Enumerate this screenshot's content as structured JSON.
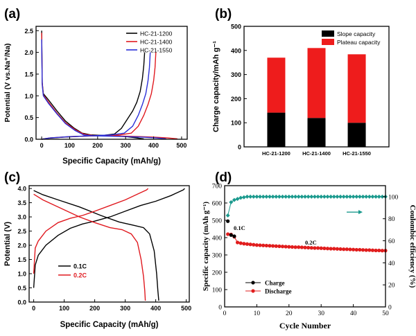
{
  "panels": [
    {
      "id": "a",
      "panel_label": "(a)",
      "chart_data": {
        "type": "line",
        "xlabel": "Specific Capacity (mAh/g)",
        "ylabel": "Potential (V vs.Na⁺/Na)",
        "xlim": [
          -20,
          520
        ],
        "ylim": [
          0,
          2.6
        ],
        "xticks": [
          0,
          100,
          200,
          300,
          400,
          500
        ],
        "yticks": [
          0.0,
          0.5,
          1.0,
          1.5,
          2.0,
          2.5
        ],
        "legend": "top-right",
        "series": [
          {
            "name": "HC-21-1200",
            "color": "#000000",
            "discharge": [
              [
                0,
                2.5
              ],
              [
                2,
                1.3
              ],
              [
                6,
                1.05
              ],
              [
                25,
                0.9
              ],
              [
                55,
                0.65
              ],
              [
                85,
                0.42
              ],
              [
                115,
                0.26
              ],
              [
                145,
                0.14
              ],
              [
                175,
                0.1
              ],
              [
                220,
                0.09
              ],
              [
                260,
                0.08
              ],
              [
                300,
                0.06
              ],
              [
                330,
                0.04
              ],
              [
                350,
                0.02
              ],
              [
                365,
                0.01
              ]
            ],
            "charge": [
              [
                0,
                0.0
              ],
              [
                20,
                0.02
              ],
              [
                80,
                0.05
              ],
              [
                150,
                0.07
              ],
              [
                220,
                0.09
              ],
              [
                260,
                0.12
              ],
              [
                285,
                0.25
              ],
              [
                305,
                0.45
              ],
              [
                325,
                0.65
              ],
              [
                340,
                0.85
              ],
              [
                352,
                1.1
              ],
              [
                360,
                1.4
              ],
              [
                365,
                1.7
              ],
              [
                368,
                2.0
              ]
            ]
          },
          {
            "name": "HC-21-1400",
            "color": "#e0191f",
            "discharge": [
              [
                0,
                2.45
              ],
              [
                2,
                1.3
              ],
              [
                6,
                1.02
              ],
              [
                25,
                0.85
              ],
              [
                55,
                0.6
              ],
              [
                85,
                0.38
              ],
              [
                120,
                0.22
              ],
              [
                150,
                0.12
              ],
              [
                180,
                0.09
              ],
              [
                240,
                0.08
              ],
              [
                300,
                0.07
              ],
              [
                350,
                0.06
              ],
              [
                400,
                0.05
              ],
              [
                450,
                0.03
              ],
              [
                485,
                0.01
              ]
            ],
            "charge": [
              [
                0,
                0.0
              ],
              [
                30,
                0.03
              ],
              [
                100,
                0.06
              ],
              [
                200,
                0.08
              ],
              [
                280,
                0.1
              ],
              [
                320,
                0.14
              ],
              [
                345,
                0.3
              ],
              [
                365,
                0.55
              ],
              [
                380,
                0.8
              ],
              [
                392,
                1.05
              ],
              [
                400,
                1.35
              ],
              [
                405,
                1.65
              ],
              [
                408,
                2.0
              ]
            ]
          },
          {
            "name": "HC-21-1550",
            "color": "#2a2fd8",
            "discharge": [
              [
                0,
                2.3
              ],
              [
                2,
                1.25
              ],
              [
                6,
                1.0
              ],
              [
                25,
                0.82
              ],
              [
                55,
                0.58
              ],
              [
                85,
                0.36
              ],
              [
                120,
                0.2
              ],
              [
                150,
                0.1
              ],
              [
                180,
                0.08
              ],
              [
                240,
                0.07
              ],
              [
                300,
                0.06
              ],
              [
                360,
                0.05
              ],
              [
                410,
                0.03
              ],
              [
                445,
                0.01
              ]
            ],
            "charge": [
              [
                0,
                0.0
              ],
              [
                30,
                0.03
              ],
              [
                100,
                0.06
              ],
              [
                180,
                0.08
              ],
              [
                250,
                0.1
              ],
              [
                295,
                0.14
              ],
              [
                325,
                0.3
              ],
              [
                345,
                0.55
              ],
              [
                360,
                0.8
              ],
              [
                372,
                1.05
              ],
              [
                380,
                1.35
              ],
              [
                385,
                1.65
              ],
              [
                388,
                2.0
              ]
            ]
          }
        ]
      }
    },
    {
      "id": "b",
      "panel_label": "(b)",
      "chart_data": {
        "type": "bar",
        "stacked": true,
        "xlabel": "",
        "ylabel": "Charge capacity/mAh g⁻¹",
        "ylim": [
          0,
          500
        ],
        "yticks": [
          0,
          100,
          200,
          300,
          400,
          500
        ],
        "legend": "top-right",
        "categories": [
          "HC-21-1200",
          "HC-21-1400",
          "HC-21-1550"
        ],
        "series": [
          {
            "name": "Slope capacity",
            "color": "#000000",
            "values": [
              142,
              120,
              100
            ]
          },
          {
            "name": "Plateau capacity",
            "color": "#ee1c1c",
            "values": [
              228,
              290,
              284
            ]
          }
        ]
      }
    },
    {
      "id": "c",
      "panel_label": "(c)",
      "chart_data": {
        "type": "line",
        "xlabel": "Specific Capacity (mAh/g)",
        "ylabel": "Potential (V)",
        "xlim": [
          -15,
          510
        ],
        "ylim": [
          0,
          4.1
        ],
        "xticks": [
          0,
          100,
          200,
          300,
          400,
          500
        ],
        "yticks": [
          0.0,
          0.5,
          1.0,
          1.5,
          2.0,
          2.5,
          3.0,
          3.5,
          4.0
        ],
        "legend": "lower-left",
        "series": [
          {
            "name": "0.1C",
            "color": "#000000",
            "charge": [
              [
                0,
                0.5
              ],
              [
                5,
                1.3
              ],
              [
                15,
                1.65
              ],
              [
                40,
                2.0
              ],
              [
                80,
                2.35
              ],
              [
                120,
                2.6
              ],
              [
                160,
                2.75
              ],
              [
                200,
                2.85
              ],
              [
                250,
                3.0
              ],
              [
                300,
                3.2
              ],
              [
                350,
                3.4
              ],
              [
                400,
                3.55
              ],
              [
                450,
                3.75
              ],
              [
                490,
                3.95
              ],
              [
                495,
                4.0
              ]
            ],
            "discharge": [
              [
                0,
                3.93
              ],
              [
                30,
                3.78
              ],
              [
                80,
                3.6
              ],
              [
                150,
                3.35
              ],
              [
                220,
                3.05
              ],
              [
                280,
                2.82
              ],
              [
                330,
                2.7
              ],
              [
                360,
                2.62
              ],
              [
                380,
                2.4
              ],
              [
                395,
                1.8
              ],
              [
                403,
                1.0
              ],
              [
                407,
                0.4
              ],
              [
                410,
                0.05
              ]
            ]
          },
          {
            "name": "0.2C",
            "color": "#e0191f",
            "charge": [
              [
                0,
                1.0
              ],
              [
                5,
                1.9
              ],
              [
                15,
                2.15
              ],
              [
                40,
                2.5
              ],
              [
                80,
                2.8
              ],
              [
                120,
                2.95
              ],
              [
                160,
                3.05
              ],
              [
                200,
                3.2
              ],
              [
                250,
                3.4
              ],
              [
                300,
                3.6
              ],
              [
                340,
                3.8
              ],
              [
                370,
                3.95
              ],
              [
                375,
                4.0
              ]
            ],
            "discharge": [
              [
                0,
                3.8
              ],
              [
                30,
                3.6
              ],
              [
                80,
                3.35
              ],
              [
                150,
                3.0
              ],
              [
                200,
                2.8
              ],
              [
                250,
                2.62
              ],
              [
                290,
                2.55
              ],
              [
                320,
                2.4
              ],
              [
                340,
                2.1
              ],
              [
                352,
                1.5
              ],
              [
                360,
                0.9
              ],
              [
                364,
                0.4
              ],
              [
                366,
                0.05
              ]
            ]
          }
        ]
      }
    },
    {
      "id": "d",
      "panel_label": "(d)",
      "chart_data": {
        "type": "scatter",
        "xlabel": "Cycle Number",
        "ylabel": "Specific capacity (mAh g⁻¹)",
        "y2label": "Coulombic efficiency (%)",
        "xlim": [
          0,
          50
        ],
        "ylim": [
          0,
          700
        ],
        "y2lim": [
          0,
          110
        ],
        "xticks": [
          0,
          10,
          20,
          30,
          40,
          50
        ],
        "yticks": [
          0,
          100,
          200,
          300,
          400,
          500,
          600,
          700
        ],
        "y2ticks": [
          0,
          20,
          40,
          60,
          80,
          100
        ],
        "legend": "lower-left",
        "annotations": [
          "0.1C",
          "0.2C"
        ],
        "series": [
          {
            "name": "Charge",
            "color": "#000000",
            "marker": "circle",
            "x": [
              1,
              2,
              3
            ],
            "values": [
              495,
              415,
              408
            ]
          },
          {
            "name": "Discharge",
            "color": "#e11d1d",
            "marker": "circle",
            "x": [
              1,
              2,
              3,
              4,
              5,
              6,
              7,
              8,
              9,
              10,
              11,
              12,
              13,
              14,
              15,
              16,
              17,
              18,
              19,
              20,
              21,
              22,
              23,
              24,
              25,
              26,
              27,
              28,
              29,
              30,
              31,
              32,
              33,
              34,
              35,
              36,
              37,
              38,
              39,
              40,
              41,
              42,
              43,
              44,
              45,
              46,
              47,
              48,
              49,
              50
            ],
            "values": [
              420,
              418,
              405,
              372,
              368,
              365,
              363,
              361,
              359,
              357,
              356,
              355,
              354,
              353,
              352,
              351,
              350,
              349,
              348,
              347,
              346,
              345,
              345,
              344,
              343,
              342,
              341,
              340,
              340,
              339,
              338,
              337,
              336,
              336,
              335,
              334,
              333,
              333,
              332,
              331,
              330,
              330,
              329,
              328,
              328,
              327,
              326,
              326,
              325,
              325
            ]
          },
          {
            "name": "Coulombic efficiency",
            "color": "#1b9a8e",
            "marker": "diamond",
            "axis": "right",
            "x": [
              1,
              2,
              3,
              4,
              5,
              6,
              7,
              8,
              9,
              10,
              11,
              12,
              13,
              14,
              15,
              16,
              17,
              18,
              19,
              20,
              21,
              22,
              23,
              24,
              25,
              26,
              27,
              28,
              29,
              30,
              31,
              32,
              33,
              34,
              35,
              36,
              37,
              38,
              39,
              40,
              41,
              42,
              43,
              44,
              45,
              46,
              47,
              48,
              49,
              50
            ],
            "values": [
              83,
              95,
              97,
              98,
              99,
              99.5,
              100,
              100,
              100,
              100,
              100,
              100,
              100,
              100,
              100,
              100,
              100,
              100,
              100,
              100,
              100,
              100,
              100,
              100,
              100,
              100,
              100,
              100,
              100,
              100,
              100,
              100,
              100,
              100,
              100,
              100,
              100,
              100,
              100,
              100,
              100,
              100,
              100,
              100,
              100,
              100,
              100,
              100,
              100,
              100
            ]
          }
        ]
      }
    }
  ]
}
